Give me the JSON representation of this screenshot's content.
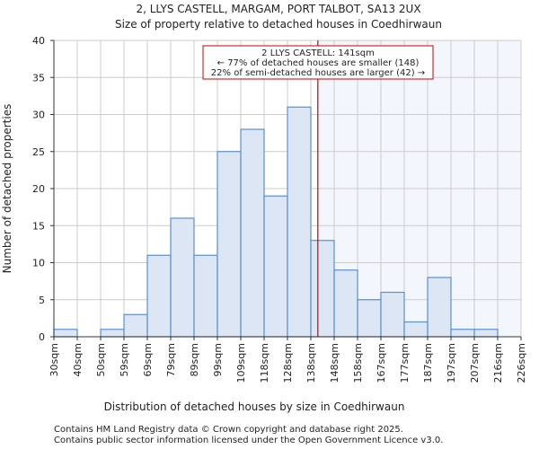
{
  "chart_data": {
    "type": "bar",
    "title": "2, LLYS CASTELL, MARGAM, PORT TALBOT, SA13 2UX",
    "subtitle": "Size of property relative to detached houses in Coedhirwaun",
    "xlabel": "Distribution of detached houses by size in Coedhirwaun",
    "ylabel": "Number of detached properties",
    "x_tick_labels": [
      "30sqm",
      "40sqm",
      "50sqm",
      "59sqm",
      "69sqm",
      "79sqm",
      "89sqm",
      "99sqm",
      "109sqm",
      "118sqm",
      "128sqm",
      "138sqm",
      "148sqm",
      "158sqm",
      "167sqm",
      "177sqm",
      "187sqm",
      "197sqm",
      "207sqm",
      "216sqm",
      "226sqm"
    ],
    "values": [
      1,
      0,
      1,
      3,
      11,
      16,
      11,
      25,
      28,
      19,
      31,
      13,
      9,
      5,
      6,
      2,
      8,
      1,
      1,
      0
    ],
    "ylim": [
      0,
      40
    ],
    "y_ticks": [
      0,
      5,
      10,
      15,
      20,
      25,
      30,
      35,
      40
    ],
    "grid": true,
    "marker": {
      "value_sqm": 141,
      "bin_position": 11.3,
      "color": "#cc0000"
    },
    "annotation": {
      "line1": "2 LLYS CASTELL: 141sqm",
      "line2": "← 77% of detached houses are smaller (148)",
      "line3": "22% of semi-detached houses are larger (42) →"
    },
    "colors": {
      "bar_fill": "#dce6f4",
      "bar_stroke": "#5a8fd6",
      "highlight_bg": "#f3f6fd",
      "grid": "#cccccc"
    }
  },
  "footer": {
    "line1": "Contains HM Land Registry data © Crown copyright and database right 2025.",
    "line2": "Contains public sector information licensed under the Open Government Licence v3.0."
  }
}
